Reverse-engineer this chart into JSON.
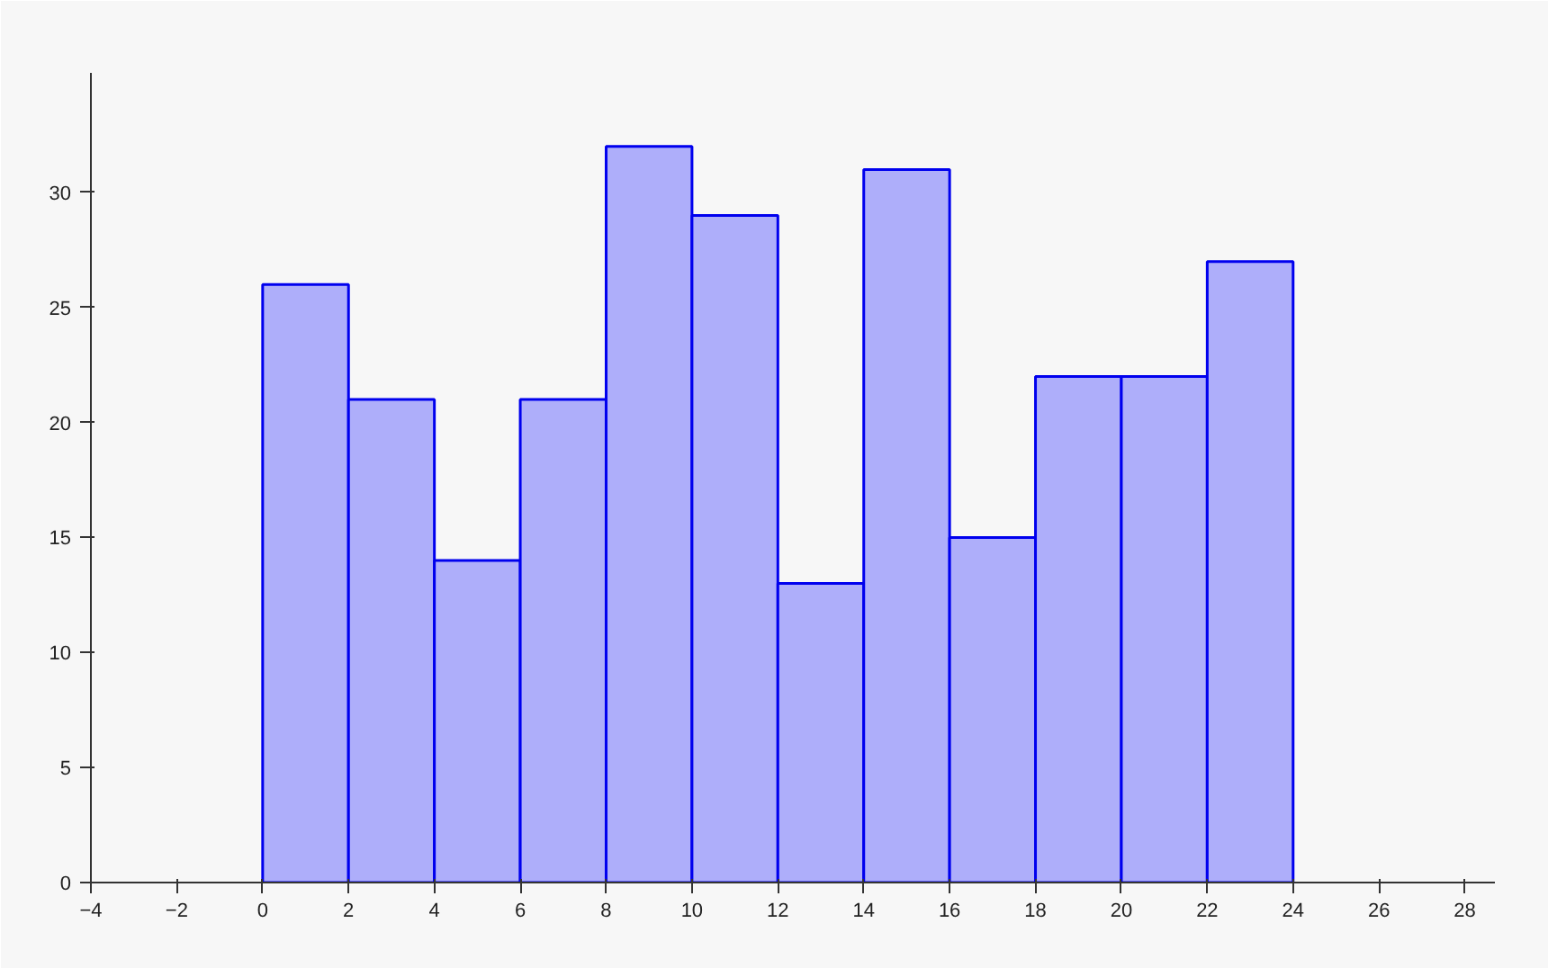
{
  "chart_data": {
    "type": "histogram",
    "bins": [
      0,
      2,
      4,
      6,
      8,
      10,
      12,
      14,
      16,
      18,
      20,
      22,
      24
    ],
    "values": [
      26,
      21,
      14,
      21,
      32,
      29,
      13,
      31,
      15,
      22,
      22,
      27
    ],
    "color": "#aeaefa",
    "xlim": [
      -4,
      28.7
    ],
    "ylim": [
      0,
      35.2
    ],
    "xticks": [
      {
        "value": -4,
        "label": "−4"
      },
      {
        "value": -2,
        "label": "−2"
      },
      0,
      2,
      4,
      6,
      8,
      10,
      12,
      14,
      16,
      18,
      20,
      22,
      24,
      26,
      28
    ],
    "yticks": [
      0,
      5,
      10,
      15,
      20,
      25,
      30
    ],
    "grid": false
  }
}
